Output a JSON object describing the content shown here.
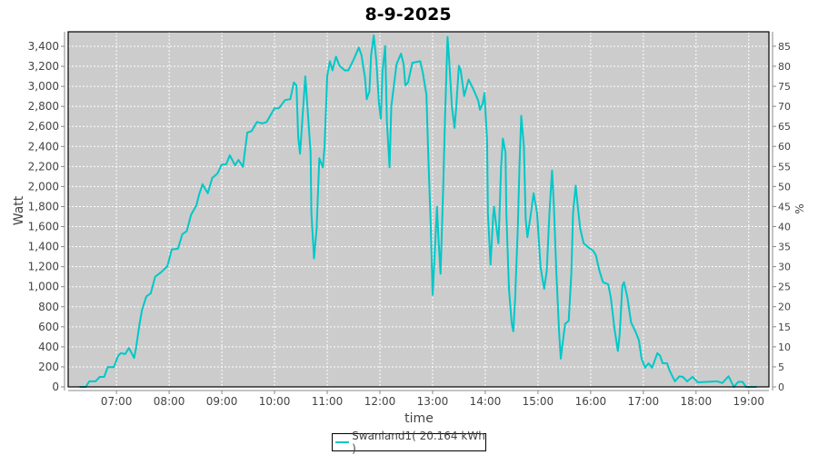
{
  "chart_data": {
    "type": "line",
    "title": "8-9-2025",
    "xlabel": "time",
    "ylabel": "Watt",
    "y2label": "%",
    "xlim": [
      "06:05",
      "19:23"
    ],
    "ylim": [
      0,
      3545
    ],
    "y2lim": [
      0,
      88.6
    ],
    "x_ticks": [
      "07:00",
      "08:00",
      "09:00",
      "10:00",
      "11:00",
      "12:00",
      "13:00",
      "14:00",
      "15:00",
      "16:00",
      "17:00",
      "18:00",
      "19:00"
    ],
    "y_ticks": [
      0,
      200,
      400,
      600,
      800,
      1000,
      1200,
      1400,
      1600,
      1800,
      2000,
      2200,
      2400,
      2600,
      2800,
      3000,
      3200,
      3400
    ],
    "y_tick_labels": [
      "0",
      "200",
      "400",
      "600",
      "800",
      "1,000",
      "1,200",
      "1,400",
      "1,600",
      "1,800",
      "2,000",
      "2,200",
      "2,400",
      "2,600",
      "2,800",
      "3,000",
      "3,200",
      "3,400"
    ],
    "y2_ticks": [
      0,
      5,
      10,
      15,
      20,
      25,
      30,
      35,
      40,
      45,
      50,
      55,
      60,
      65,
      70,
      75,
      80,
      85
    ],
    "grid": true,
    "legend_position": "bottom",
    "colors": {
      "series": "#00c8c8",
      "plot_bg": "#cccccc",
      "grid": "#ffffff"
    },
    "series": [
      {
        "name": "Swanland1( 20.164 kWh )",
        "x": [
          "06:18",
          "06:25",
          "06:29",
          "06:36",
          "06:41",
          "06:46",
          "06:50",
          "06:57",
          "07:02",
          "07:05",
          "07:10",
          "07:14",
          "07:17",
          "07:20",
          "07:22",
          "07:26",
          "07:29",
          "07:34",
          "07:39",
          "07:44",
          "07:51",
          "07:58",
          "08:03",
          "08:10",
          "08:15",
          "08:20",
          "08:25",
          "08:31",
          "08:34",
          "08:38",
          "08:44",
          "08:49",
          "08:55",
          "09:00",
          "09:05",
          "09:09",
          "09:15",
          "09:19",
          "09:24",
          "09:29",
          "09:34",
          "09:40",
          "09:46",
          "09:51",
          "10:00",
          "10:05",
          "10:12",
          "10:18",
          "10:22",
          "10:25",
          "10:27",
          "10:29",
          "10:35",
          "10:37",
          "10:41",
          "10:42",
          "10:45",
          "10:48",
          "10:51",
          "10:55",
          "10:57",
          "11:00",
          "11:03",
          "11:06",
          "11:10",
          "11:14",
          "11:20",
          "11:24",
          "11:30",
          "11:36",
          "11:39",
          "11:43",
          "11:45",
          "11:48",
          "11:50",
          "11:53",
          "11:56",
          "11:59",
          "12:01",
          "12:03",
          "12:06",
          "12:08",
          "12:11",
          "12:13",
          "12:19",
          "12:24",
          "12:27",
          "12:29",
          "12:32",
          "12:37",
          "12:46",
          "12:49",
          "12:53",
          "12:55",
          "12:58",
          "13:00",
          "13:02",
          "13:05",
          "13:07",
          "13:09",
          "13:12",
          "13:14",
          "13:17",
          "13:19",
          "13:22",
          "13:25",
          "13:27",
          "13:30",
          "13:32",
          "13:36",
          "13:41",
          "13:46",
          "13:52",
          "13:54",
          "13:57",
          "13:59",
          "14:02",
          "14:03",
          "14:06",
          "14:09",
          "14:10",
          "14:12",
          "14:15",
          "14:16",
          "14:18",
          "14:20",
          "14:23",
          "14:24",
          "14:27",
          "14:30",
          "14:32",
          "14:34",
          "14:37",
          "14:39",
          "14:41",
          "14:44",
          "14:46",
          "14:48",
          "14:52",
          "14:55",
          "14:59",
          "15:03",
          "15:07",
          "15:10",
          "15:13",
          "15:16",
          "15:18",
          "15:21",
          "15:24",
          "15:26",
          "15:28",
          "15:31",
          "15:35",
          "15:38",
          "15:40",
          "15:43",
          "15:45",
          "15:48",
          "15:52",
          "15:56",
          "16:03",
          "16:06",
          "16:10",
          "16:14",
          "16:20",
          "16:23",
          "16:27",
          "16:31",
          "16:33",
          "16:36",
          "16:38",
          "16:42",
          "16:46",
          "16:51",
          "16:55",
          "16:58",
          "17:02",
          "17:06",
          "17:10",
          "17:16",
          "17:19",
          "17:22",
          "17:27",
          "17:30",
          "17:36",
          "17:41",
          "17:45",
          "17:50",
          "17:56",
          "18:02",
          "18:24",
          "18:30",
          "18:37",
          "18:43",
          "18:48",
          "18:53",
          "18:57",
          "19:09"
        ],
        "values": [
          0,
          0,
          55,
          55,
          100,
          100,
          197,
          197,
          312,
          336,
          327,
          388,
          342,
          288,
          373,
          615,
          767,
          903,
          933,
          1100,
          1145,
          1206,
          1373,
          1379,
          1524,
          1554,
          1721,
          1812,
          1918,
          2024,
          1933,
          2085,
          2130,
          2221,
          2221,
          2312,
          2212,
          2266,
          2197,
          2539,
          2554,
          2645,
          2630,
          2645,
          2782,
          2782,
          2863,
          2872,
          3039,
          3009,
          2494,
          2327,
          3100,
          2857,
          2342,
          1736,
          1282,
          1585,
          2282,
          2191,
          2403,
          3100,
          3251,
          3160,
          3297,
          3206,
          3160,
          3160,
          3266,
          3388,
          3312,
          3085,
          2872,
          2948,
          3312,
          3509,
          3251,
          2827,
          2676,
          3160,
          3403,
          2645,
          2191,
          2797,
          3221,
          3327,
          3221,
          3009,
          3039,
          3236,
          3251,
          3130,
          2918,
          2342,
          1585,
          918,
          1251,
          1797,
          1433,
          1130,
          1979,
          2645,
          3494,
          3251,
          2797,
          2585,
          2797,
          3206,
          3160,
          2903,
          3069,
          2979,
          2857,
          2766,
          2827,
          2933,
          2463,
          1736,
          1221,
          1706,
          1797,
          1645,
          1433,
          1676,
          2191,
          2479,
          2342,
          1736,
          979,
          645,
          554,
          888,
          1585,
          2221,
          2706,
          2403,
          1676,
          1494,
          1736,
          1933,
          1736,
          1191,
          979,
          1160,
          1736,
          2160,
          1827,
          1130,
          554,
          282,
          433,
          630,
          660,
          1130,
          1736,
          2009,
          1827,
          1585,
          1433,
          1403,
          1357,
          1312,
          1160,
          1045,
          1024,
          888,
          585,
          358,
          524,
          1009,
          1045,
          888,
          645,
          554,
          464,
          282,
          191,
          236,
          191,
          336,
          312,
          236,
          236,
          161,
          55,
          106,
          100,
          55,
          100,
          45,
          55,
          39,
          106,
          0,
          50,
          50,
          0,
          0
        ]
      }
    ]
  }
}
